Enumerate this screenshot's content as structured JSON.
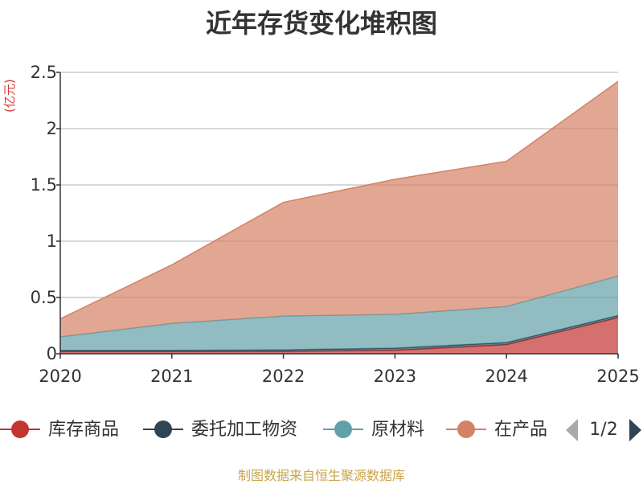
{
  "chart_data": {
    "type": "area",
    "stacked": true,
    "title": "近年存货变化堆积图",
    "y_unit": "(亿元)",
    "categories": [
      "2020",
      "2021",
      "2022",
      "2023",
      "2024",
      "2025"
    ],
    "ylim": [
      0,
      2.5
    ],
    "y_ticks": [
      "0",
      "0.5",
      "1",
      "1.5",
      "2",
      "2.5"
    ],
    "grid": true,
    "legend_position": "bottom",
    "series": [
      {
        "name": "库存商品",
        "color": "#c23531",
        "values": [
          0.02,
          0.02,
          0.02,
          0.03,
          0.08,
          0.32
        ]
      },
      {
        "name": "委托加工物资",
        "color": "#2f4554",
        "values": [
          0.01,
          0.01,
          0.015,
          0.02,
          0.02,
          0.02
        ]
      },
      {
        "name": "原材料",
        "color": "#61a0a8",
        "values": [
          0.12,
          0.24,
          0.3,
          0.3,
          0.32,
          0.35
        ]
      },
      {
        "name": "在产品",
        "color": "#d48265",
        "values": [
          0.16,
          0.52,
          1.01,
          1.2,
          1.29,
          1.73
        ]
      }
    ],
    "legend_visible": [
      "库存商品",
      "委托加工物资",
      "原材料",
      "在产品"
    ],
    "legend_page": "1/2",
    "source": "制图数据来自恒生聚源数据库"
  }
}
